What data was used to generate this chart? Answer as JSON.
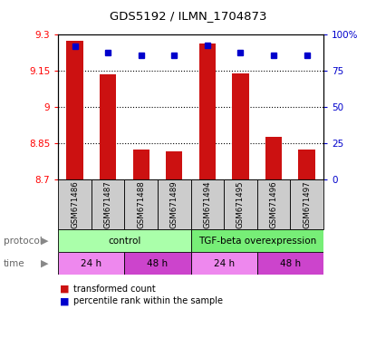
{
  "title": "GDS5192 / ILMN_1704873",
  "samples": [
    "GSM671486",
    "GSM671487",
    "GSM671488",
    "GSM671489",
    "GSM671494",
    "GSM671495",
    "GSM671496",
    "GSM671497"
  ],
  "red_values": [
    9.275,
    9.135,
    8.825,
    8.815,
    9.265,
    9.14,
    8.875,
    8.825
  ],
  "blue_values": [
    92,
    88,
    86,
    86,
    93,
    88,
    86,
    86
  ],
  "ylim": [
    8.7,
    9.3
  ],
  "yticks": [
    8.7,
    8.85,
    9.0,
    9.15,
    9.3
  ],
  "ytick_labels": [
    "8.7",
    "8.85",
    "9",
    "9.15",
    "9.3"
  ],
  "y2lim": [
    0,
    100
  ],
  "y2ticks": [
    0,
    25,
    50,
    75,
    100
  ],
  "y2tick_labels": [
    "0",
    "25",
    "50",
    "75",
    "100%"
  ],
  "bar_color": "#cc1111",
  "square_color": "#0000cc",
  "protocol_labels": [
    "control",
    "TGF-beta overexpression"
  ],
  "protocol_color_control": "#aaffaa",
  "protocol_color_tgf": "#77ee77",
  "time_labels": [
    "24 h",
    "48 h",
    "24 h",
    "48 h"
  ],
  "time_color_light": "#ee88ee",
  "time_color_dark": "#cc44cc",
  "legend_red": "transformed count",
  "legend_blue": "percentile rank within the sample",
  "bar_width": 0.5,
  "ybase": 8.7,
  "sample_bg": "#cccccc"
}
